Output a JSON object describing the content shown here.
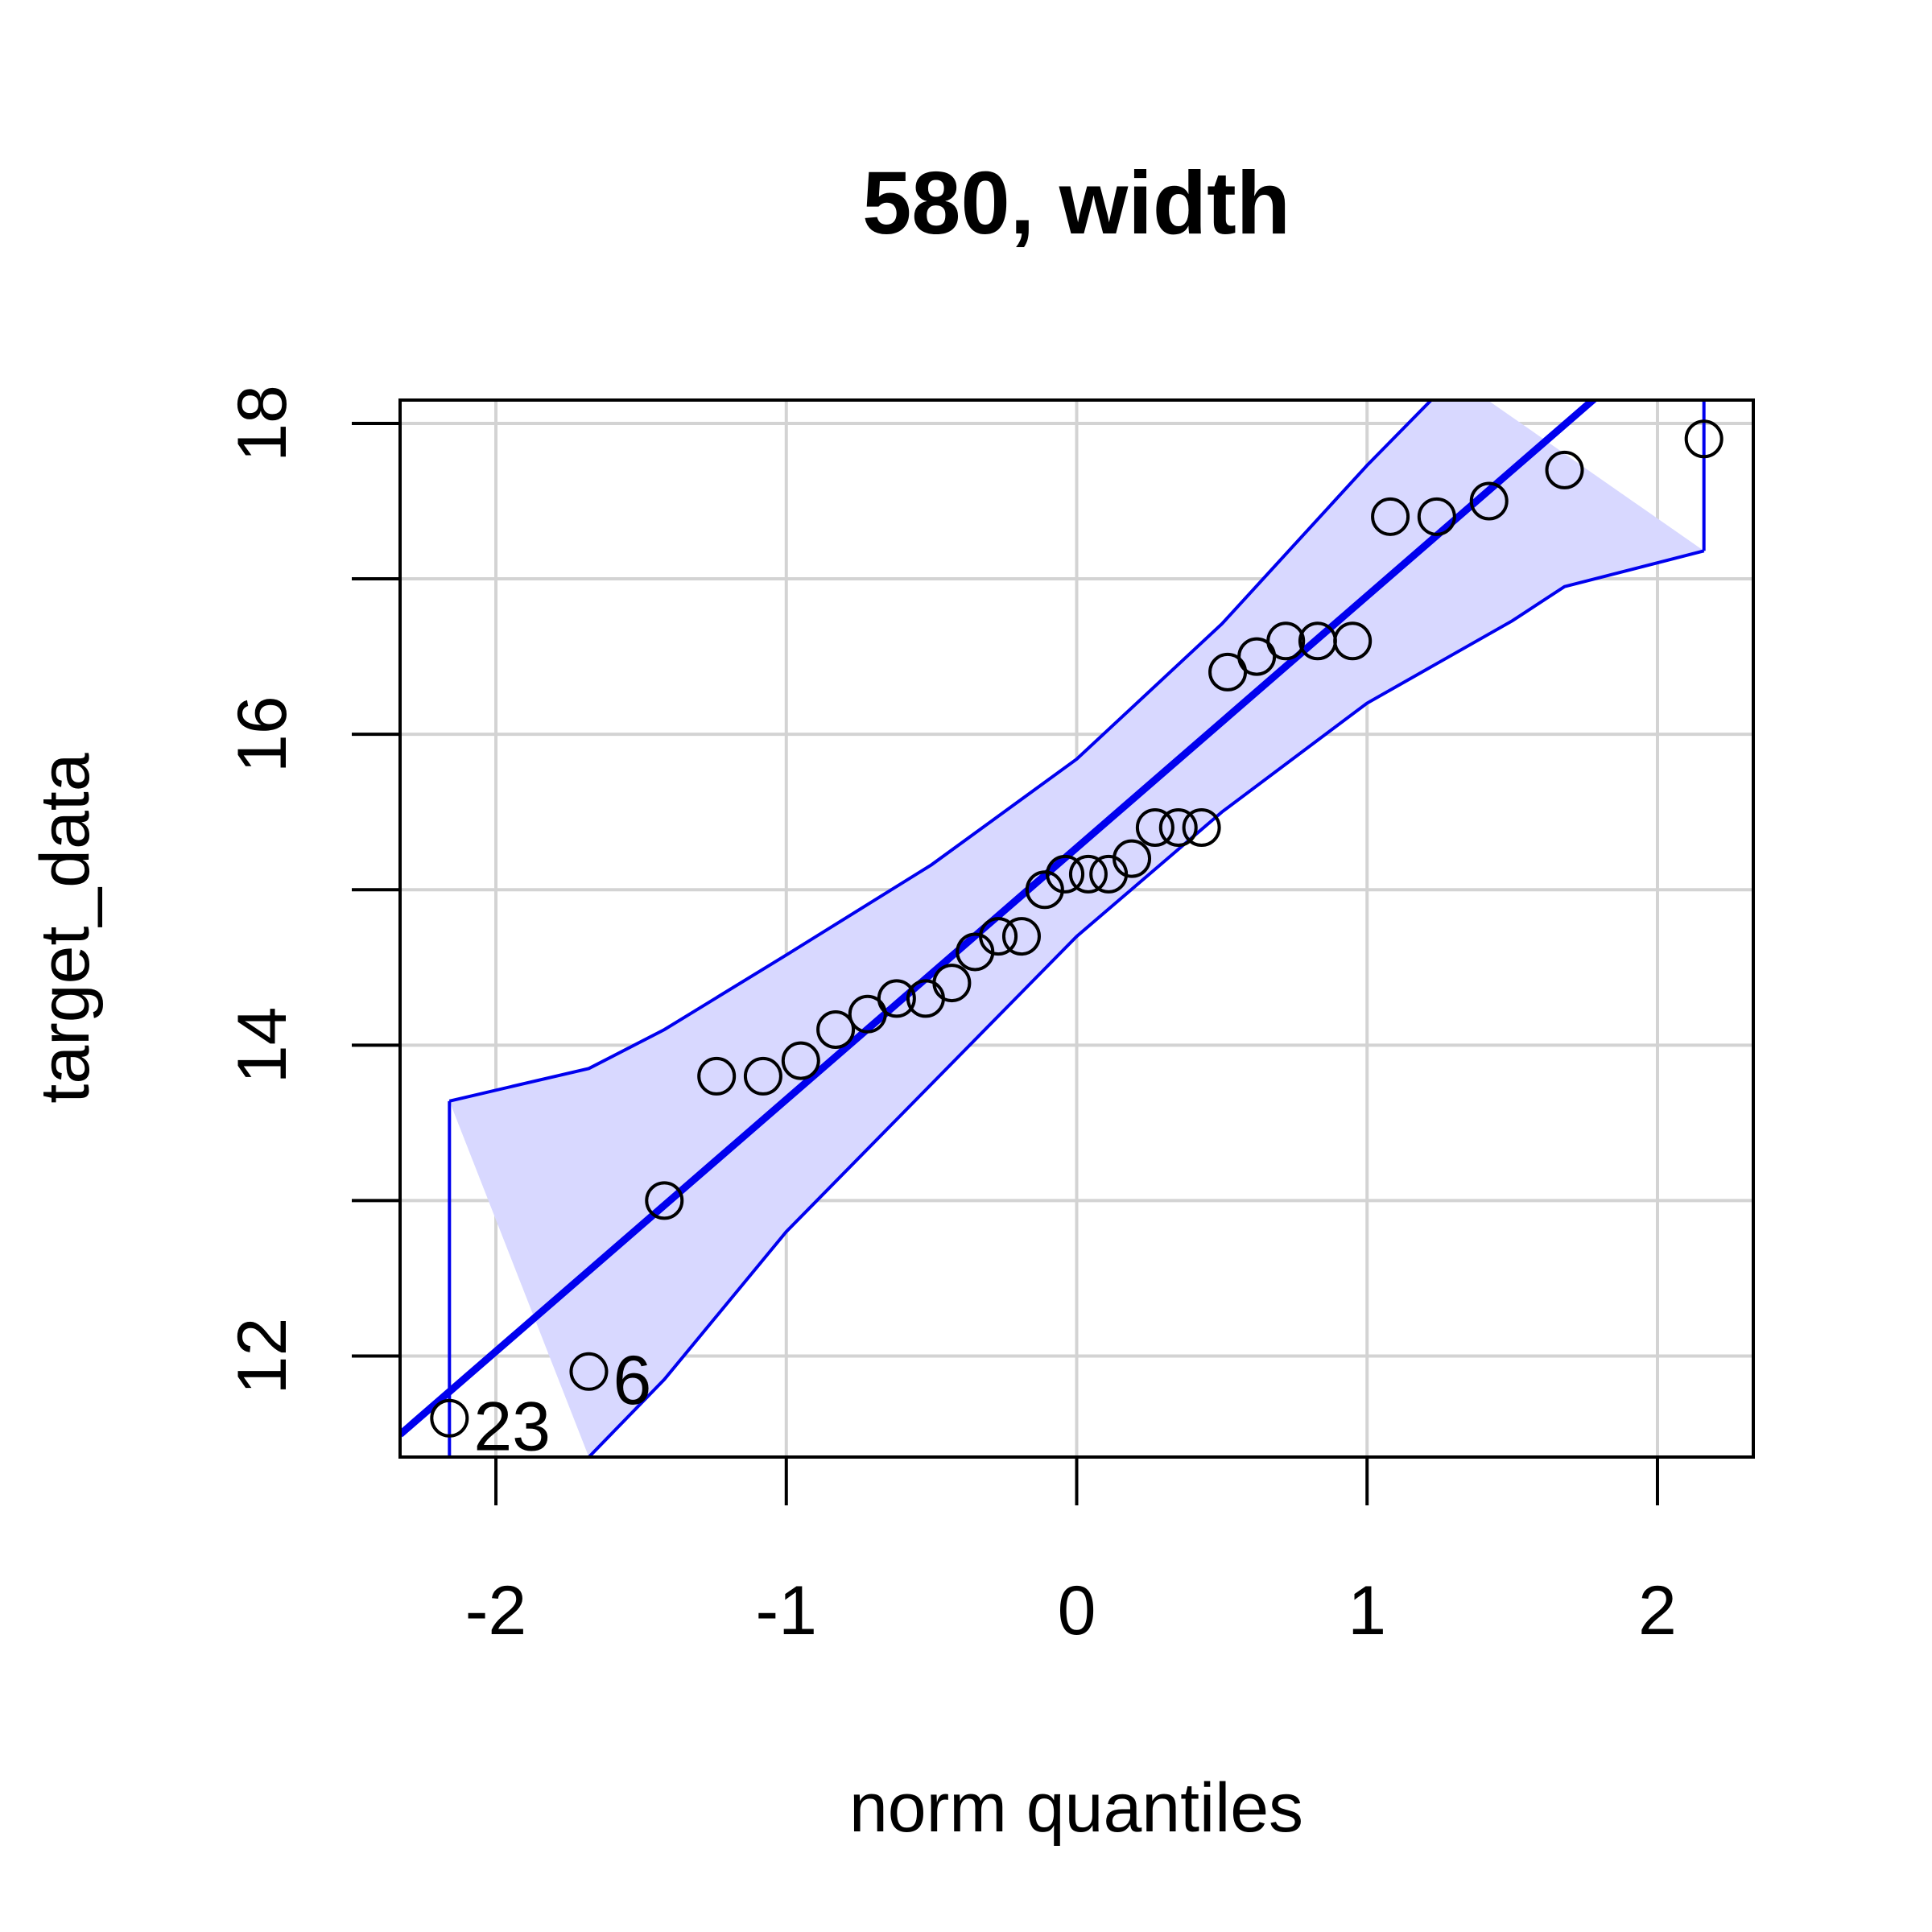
{
  "chart_data": {
    "type": "scatter",
    "title": "580, width",
    "xlabel": "norm quantiles",
    "ylabel": "target_data",
    "xlim": [
      -2.33,
      2.33
    ],
    "ylim": [
      11.35,
      18.15
    ],
    "x_ticks": [
      "-2",
      "-1",
      "0",
      "1",
      "2"
    ],
    "y_ticks": [
      "12",
      "14",
      "16",
      "18"
    ],
    "grid": true,
    "points": {
      "x": [
        -2.16,
        -1.68,
        -1.42,
        -1.24,
        -1.08,
        -0.95,
        -0.83,
        -0.72,
        -0.62,
        -0.52,
        -0.43,
        -0.35,
        -0.27,
        -0.19,
        -0.11,
        -0.04,
        0.04,
        0.11,
        0.19,
        0.27,
        0.35,
        0.43,
        0.52,
        0.62,
        0.72,
        0.83,
        0.95,
        1.08,
        1.24,
        1.42,
        1.68,
        2.16
      ],
      "y": [
        11.6,
        11.9,
        13.0,
        13.8,
        13.8,
        13.9,
        14.1,
        14.2,
        14.3,
        14.3,
        14.4,
        14.6,
        14.7,
        14.7,
        15.0,
        15.1,
        15.1,
        15.1,
        15.2,
        15.4,
        15.4,
        15.4,
        16.4,
        16.5,
        16.6,
        16.6,
        16.6,
        17.4,
        17.4,
        17.5,
        17.7,
        17.9
      ]
    },
    "labeled_points": [
      {
        "label": "23",
        "x": -2.16,
        "y": 11.6
      },
      {
        "label": "6",
        "x": -1.68,
        "y": 11.9
      }
    ],
    "reference_line": {
      "intercept": 15.27,
      "slope": 1.62
    },
    "envelope": {
      "upper": [
        [
          -2.16,
          13.64
        ],
        [
          -1.68,
          13.85
        ],
        [
          -1.42,
          14.1
        ],
        [
          -1.0,
          14.58
        ],
        [
          -0.5,
          15.16
        ],
        [
          0.0,
          15.84
        ],
        [
          0.5,
          16.71
        ],
        [
          1.0,
          17.73
        ],
        [
          1.3,
          18.3
        ]
      ],
      "lower": [
        [
          -1.68,
          11.35
        ],
        [
          -1.42,
          11.85
        ],
        [
          -1.0,
          12.8
        ],
        [
          -0.5,
          13.75
        ],
        [
          0.0,
          14.7
        ],
        [
          0.5,
          15.5
        ],
        [
          1.0,
          16.2
        ],
        [
          1.5,
          16.73
        ],
        [
          1.68,
          16.95
        ],
        [
          2.16,
          17.18
        ]
      ]
    },
    "colors": {
      "points": "#000000",
      "line": "#0000ee",
      "band_fill": "#d8d8ff",
      "grid": "#d3d3d3"
    }
  }
}
